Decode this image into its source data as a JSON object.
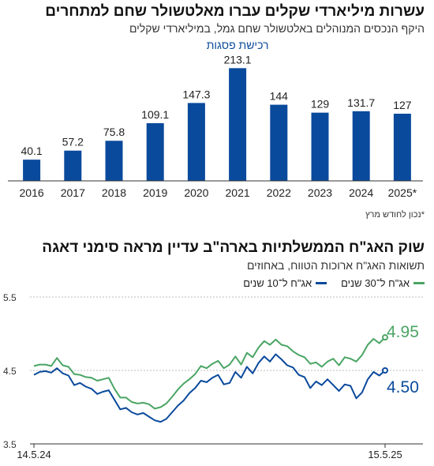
{
  "chart_data": [
    {
      "type": "bar",
      "title": "עשרות מיליארדי שקלים עברו מאלטשולר שחם למתחרים",
      "subtitle": "היקף הנכסים המנוהלים באלטשולר שחם גמל, במיליארדי שקלים",
      "annotation": "רכישת פסגות",
      "footnote": "*נכון לחודש מרץ",
      "categories": [
        "2016",
        "2017",
        "2018",
        "2019",
        "2020",
        "2021",
        "2022",
        "2023",
        "2024",
        "2025*"
      ],
      "values": [
        40.1,
        57.2,
        75.8,
        109.1,
        147.3,
        213.1,
        144,
        129,
        131.7,
        127
      ],
      "value_labels": [
        "40.1",
        "57.2",
        "75.8",
        "109.1",
        "147.3",
        "213.1",
        "144",
        "129",
        "131.7",
        "127"
      ],
      "ylim": [
        0,
        230
      ],
      "color": "#0a4a9c",
      "grid": false
    },
    {
      "type": "line",
      "title": "שוק האג\"ח הממשלתיות בארה\"ב עדיין מראה סימני דאגה",
      "subtitle": "תשואות האג\"ח ארוכות הטווח, באחוזים",
      "x_labels": [
        "14.5.24",
        "15.5.25"
      ],
      "yticks": [
        "3.5",
        "4.5",
        "5.5"
      ],
      "ylim": [
        3.5,
        5.5
      ],
      "grid": true,
      "legend_position": "top-right",
      "series": [
        {
          "name": "אג\"ח ל־10 שנים",
          "color": "#0a4a9c",
          "end_label": "4.50",
          "values": [
            4.44,
            4.48,
            4.49,
            4.47,
            4.53,
            4.46,
            4.43,
            4.3,
            4.33,
            4.28,
            4.25,
            4.18,
            4.21,
            4.23,
            4.1,
            3.97,
            3.99,
            3.93,
            3.9,
            3.92,
            3.87,
            3.82,
            3.8,
            3.84,
            3.93,
            4.02,
            4.09,
            4.19,
            4.26,
            4.36,
            4.34,
            4.4,
            4.44,
            4.31,
            4.33,
            4.48,
            4.4,
            4.55,
            4.46,
            4.6,
            4.69,
            4.62,
            4.72,
            4.65,
            4.57,
            4.54,
            4.44,
            4.41,
            4.26,
            4.35,
            4.3,
            4.38,
            4.3,
            4.22,
            4.31,
            4.29,
            4.12,
            4.2,
            4.38,
            4.48,
            4.43,
            4.5
          ]
        },
        {
          "name": "אג\"ח ל־30 שנים",
          "color": "#4aa564",
          "end_label": "4.95",
          "values": [
            4.56,
            4.58,
            4.58,
            4.56,
            4.67,
            4.57,
            4.55,
            4.45,
            4.44,
            4.41,
            4.4,
            4.36,
            4.38,
            4.4,
            4.25,
            4.13,
            4.13,
            4.07,
            4.05,
            4.06,
            4.04,
            3.98,
            4.0,
            4.05,
            4.14,
            4.24,
            4.32,
            4.38,
            4.45,
            4.56,
            4.53,
            4.59,
            4.63,
            4.53,
            4.58,
            4.69,
            4.58,
            4.74,
            4.68,
            4.81,
            4.9,
            4.85,
            4.92,
            4.85,
            4.83,
            4.76,
            4.71,
            4.68,
            4.59,
            4.61,
            4.55,
            4.62,
            4.66,
            4.57,
            4.68,
            4.66,
            4.62,
            4.71,
            4.85,
            4.93,
            4.87,
            4.95
          ]
        }
      ]
    }
  ]
}
